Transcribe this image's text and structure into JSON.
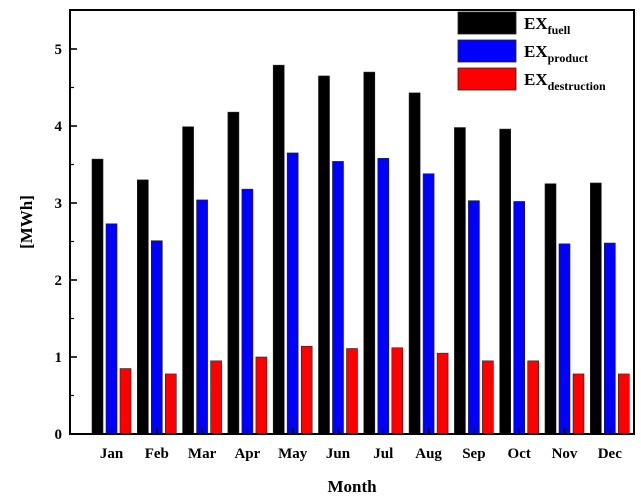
{
  "chart_data": {
    "type": "bar",
    "categories": [
      "Jan",
      "Feb",
      "Mar",
      "Apr",
      "May",
      "Jun",
      "Jul",
      "Aug",
      "Sep",
      "Oct",
      "Nov",
      "Dec"
    ],
    "series": [
      {
        "name": "EXfuell",
        "label_main": "EX",
        "label_sub": "fuell",
        "color": "#000000",
        "values": [
          3.57,
          3.3,
          3.99,
          4.18,
          4.79,
          4.65,
          4.7,
          4.43,
          3.98,
          3.96,
          3.25,
          3.26
        ]
      },
      {
        "name": "EXproduct",
        "label_main": "EX",
        "label_sub": "product",
        "color": "#0000ff",
        "values": [
          2.73,
          2.51,
          3.04,
          3.18,
          3.65,
          3.54,
          3.58,
          3.38,
          3.03,
          3.02,
          2.47,
          2.48
        ]
      },
      {
        "name": "EXdestruction",
        "label_main": "EX",
        "label_sub": "destruction",
        "color": "#ff0000",
        "values": [
          0.85,
          0.78,
          0.95,
          1.0,
          1.14,
          1.11,
          1.12,
          1.05,
          0.95,
          0.95,
          0.78,
          0.78
        ]
      }
    ],
    "xlabel": "Month",
    "ylabel": "[MWh]",
    "ylim": [
      0,
      5.5
    ],
    "yticks": [
      "0",
      "1",
      "2",
      "3",
      "4",
      "5"
    ],
    "grid": false,
    "legend_position": "top-right"
  }
}
